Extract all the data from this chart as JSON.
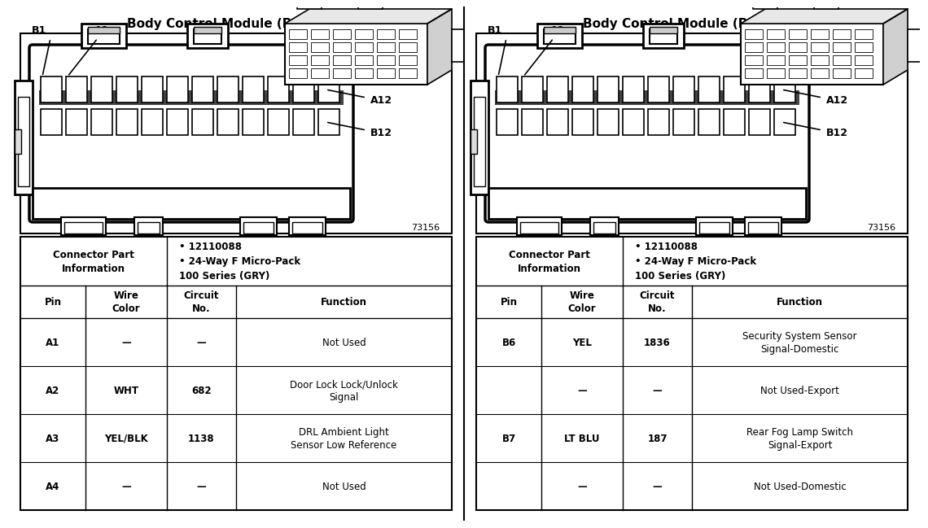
{
  "title": "Body Control Module (BCM), C2",
  "background_color": "#ffffff",
  "panel1": {
    "connector_info_bullet1": "12110088",
    "connector_info_bullet2": "24-Way F Micro-Pack\n100 Series (GRY)",
    "table_headers": [
      "Pin",
      "Wire\nColor",
      "Circuit\nNo.",
      "Function"
    ],
    "table_data": [
      [
        "A1",
        "—",
        "—",
        "Not Used"
      ],
      [
        "A2",
        "WHT",
        "682",
        "Door Lock Lock/Unlock\nSignal"
      ],
      [
        "A3",
        "YEL/BLK",
        "1138",
        "DRL Ambient Light\nSensor Low Reference"
      ],
      [
        "A4",
        "—",
        "—",
        "Not Used"
      ]
    ]
  },
  "panel2": {
    "connector_info_bullet1": "12110088",
    "connector_info_bullet2": "24-Way F Micro-Pack\n100 Series (GRY)",
    "table_headers": [
      "Pin",
      "Wire\nColor",
      "Circuit\nNo.",
      "Function"
    ],
    "table_data": [
      [
        "B6",
        "YEL",
        "1836",
        "Security System Sensor\nSignal-Domestic"
      ],
      [
        "",
        "—",
        "—",
        "Not Used-Export"
      ],
      [
        "B7",
        "LT BLU",
        "187",
        "Rear Fog Lamp Switch\nSignal-Export"
      ],
      [
        "",
        "—",
        "—",
        "Not Used-Domestic"
      ]
    ]
  }
}
